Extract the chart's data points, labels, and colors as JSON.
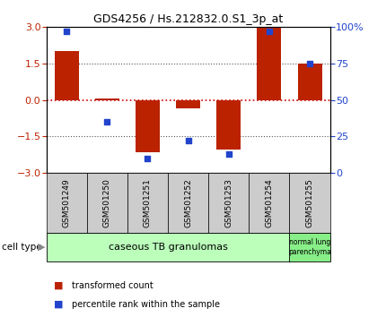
{
  "title": "GDS4256 / Hs.212832.0.S1_3p_at",
  "samples": [
    "GSM501249",
    "GSM501250",
    "GSM501251",
    "GSM501252",
    "GSM501253",
    "GSM501254",
    "GSM501255"
  ],
  "transformed_count": [
    2.0,
    0.05,
    -2.15,
    -0.35,
    -2.05,
    3.0,
    1.5
  ],
  "percentile_rank": [
    97,
    35,
    10,
    22,
    13,
    97,
    75
  ],
  "ylim_left": [
    -3,
    3
  ],
  "ylim_right": [
    0,
    100
  ],
  "yticks_left": [
    -3,
    -1.5,
    0,
    1.5,
    3
  ],
  "yticks_right": [
    0,
    25,
    50,
    75,
    100
  ],
  "ytick_labels_right": [
    "0",
    "25",
    "50",
    "75",
    "100%"
  ],
  "bar_color": "#bb2200",
  "dot_color": "#2244cc",
  "zero_line_color": "#cc0000",
  "dotted_line_color": "#555555",
  "group1_label": "caseous TB granulomas",
  "group2_label": "normal lung\nparenchyma",
  "group1_color": "#bbffbb",
  "group2_color": "#88ee88",
  "sample_box_color": "#cccccc",
  "cell_type_label": "cell type",
  "legend_bar_label": "transformed count",
  "legend_dot_label": "percentile rank within the sample",
  "bg_color": "#ffffff",
  "bar_width": 0.6
}
